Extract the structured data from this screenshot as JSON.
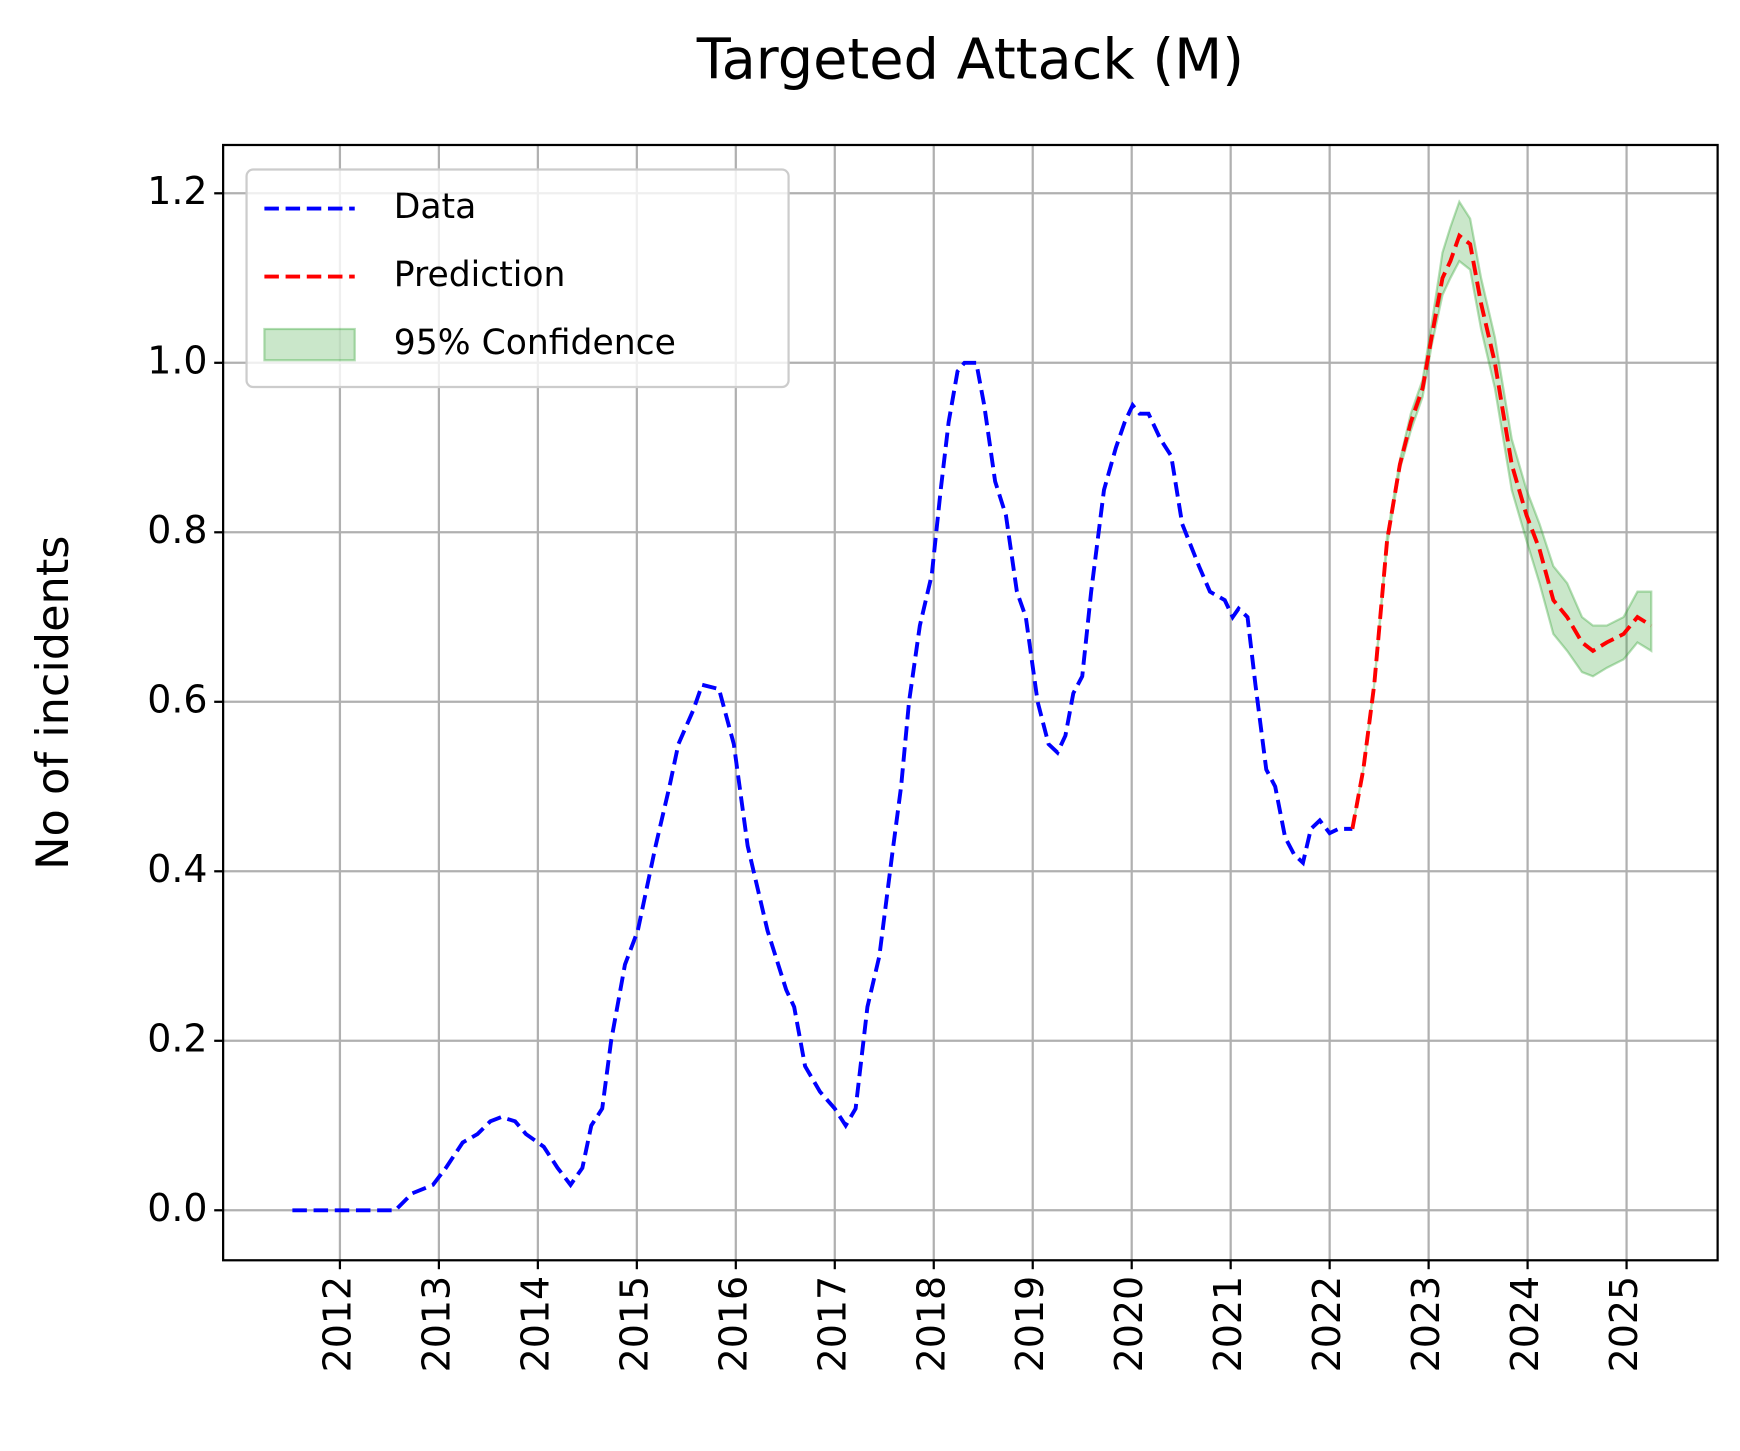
{
  "chart_data": {
    "type": "line",
    "title": "Targeted Attack (M)",
    "ylabel": "No of incidents",
    "xlim": [
      2010.82,
      2025.92
    ],
    "xticks": [
      2012,
      2013,
      2014,
      2015,
      2016,
      2017,
      2018,
      2019,
      2020,
      2021,
      2022,
      2023,
      2024,
      2025
    ],
    "ylim": [
      -0.059,
      1.257
    ],
    "yticks": [
      {
        "value": 0,
        "label": "0.0"
      },
      {
        "value": 0.2,
        "label": "0.2"
      },
      {
        "value": 0.4,
        "label": "0.4"
      },
      {
        "value": 0.6,
        "label": "0.6"
      },
      {
        "value": 0.8,
        "label": "0.8"
      },
      {
        "value": 1,
        "label": "1.0"
      },
      {
        "value": 1.2,
        "label": "1.2"
      }
    ],
    "grid": true,
    "legend_loc": "upper left",
    "series": [
      {
        "name": "Data",
        "color": "#0000ff",
        "x": [
          2011.52,
          2012.56,
          2012.73,
          2012.94,
          2013.07,
          2013.24,
          2013.39,
          2013.52,
          2013.63,
          2013.77,
          2013.88,
          2014.06,
          2014.2,
          2014.33,
          2014.45,
          2014.54,
          2014.65,
          2014.74,
          2014.88,
          2015.01,
          2015.19,
          2015.33,
          2015.42,
          2015.57,
          2015.66,
          2015.83,
          2015.98,
          2016.12,
          2016.32,
          2016.51,
          2016.59,
          2016.7,
          2016.85,
          2017.0,
          2017.11,
          2017.21,
          2017.33,
          2017.45,
          2017.58,
          2017.67,
          2017.75,
          2017.86,
          2017.98,
          2018.07,
          2018.15,
          2018.24,
          2018.31,
          2018.43,
          2018.51,
          2018.62,
          2018.73,
          2018.84,
          2018.93,
          2019.05,
          2019.16,
          2019.25,
          2019.33,
          2019.41,
          2019.5,
          2019.59,
          2019.72,
          2019.84,
          2019.93,
          2020.01,
          2020.08,
          2020.17,
          2020.29,
          2020.4,
          2020.51,
          2020.68,
          2020.79,
          2020.94,
          2021.02,
          2021.08,
          2021.17,
          2021.25,
          2021.36,
          2021.45,
          2021.55,
          2021.64,
          2021.73,
          2021.81,
          2021.9,
          2022.0,
          2022.09,
          2022.23
        ],
        "values": [
          0,
          0,
          0.02,
          0.03,
          0.05,
          0.08,
          0.09,
          0.105,
          0.11,
          0.105,
          0.09,
          0.075,
          0.05,
          0.03,
          0.05,
          0.1,
          0.12,
          0.2,
          0.29,
          0.33,
          0.43,
          0.5,
          0.55,
          0.59,
          0.62,
          0.615,
          0.55,
          0.43,
          0.33,
          0.26,
          0.24,
          0.17,
          0.14,
          0.12,
          0.1,
          0.12,
          0.24,
          0.3,
          0.42,
          0.5,
          0.6,
          0.69,
          0.75,
          0.85,
          0.93,
          0.99,
          1.0,
          1.0,
          0.95,
          0.86,
          0.82,
          0.73,
          0.7,
          0.6,
          0.55,
          0.54,
          0.56,
          0.61,
          0.63,
          0.73,
          0.85,
          0.9,
          0.93,
          0.95,
          0.94,
          0.94,
          0.91,
          0.89,
          0.81,
          0.76,
          0.73,
          0.72,
          0.7,
          0.71,
          0.7,
          0.62,
          0.52,
          0.5,
          0.44,
          0.42,
          0.41,
          0.45,
          0.46,
          0.445,
          0.45,
          0.45
        ]
      },
      {
        "name": "Prediction",
        "color": "#ff0000",
        "x": [
          2022.23,
          2022.34,
          2022.45,
          2022.58,
          2022.71,
          2022.82,
          2022.94,
          2023.03,
          2023.14,
          2023.22,
          2023.31,
          2023.42,
          2023.53,
          2023.67,
          2023.84,
          2023.99,
          2024.12,
          2024.26,
          2024.4,
          2024.55,
          2024.66,
          2024.8,
          2024.97,
          2025.11,
          2025.25
        ],
        "values": [
          0.45,
          0.52,
          0.62,
          0.79,
          0.88,
          0.93,
          0.97,
          1.03,
          1.1,
          1.12,
          1.15,
          1.14,
          1.07,
          1.0,
          0.88,
          0.82,
          0.78,
          0.72,
          0.7,
          0.67,
          0.66,
          0.67,
          0.68,
          0.7,
          0.69
        ]
      }
    ],
    "bands": [
      {
        "name": "95% Confidence",
        "color": "#2ca02c",
        "x": [
          2022.23,
          2022.34,
          2022.45,
          2022.58,
          2022.71,
          2022.82,
          2022.94,
          2023.03,
          2023.14,
          2023.22,
          2023.31,
          2023.42,
          2023.53,
          2023.67,
          2023.84,
          2023.99,
          2024.12,
          2024.26,
          2024.4,
          2024.55,
          2024.66,
          2024.8,
          2024.97,
          2025.11,
          2025.25
        ],
        "lower": [
          0.45,
          0.52,
          0.62,
          0.785,
          0.875,
          0.92,
          0.96,
          1.02,
          1.08,
          1.1,
          1.12,
          1.11,
          1.04,
          0.97,
          0.85,
          0.79,
          0.74,
          0.68,
          0.66,
          0.635,
          0.63,
          0.64,
          0.65,
          0.67,
          0.66
        ],
        "upper": [
          0.45,
          0.52,
          0.62,
          0.795,
          0.885,
          0.94,
          0.98,
          1.045,
          1.13,
          1.16,
          1.19,
          1.17,
          1.1,
          1.03,
          0.91,
          0.85,
          0.81,
          0.76,
          0.74,
          0.7,
          0.69,
          0.69,
          0.7,
          0.73,
          0.73
        ]
      }
    ]
  }
}
